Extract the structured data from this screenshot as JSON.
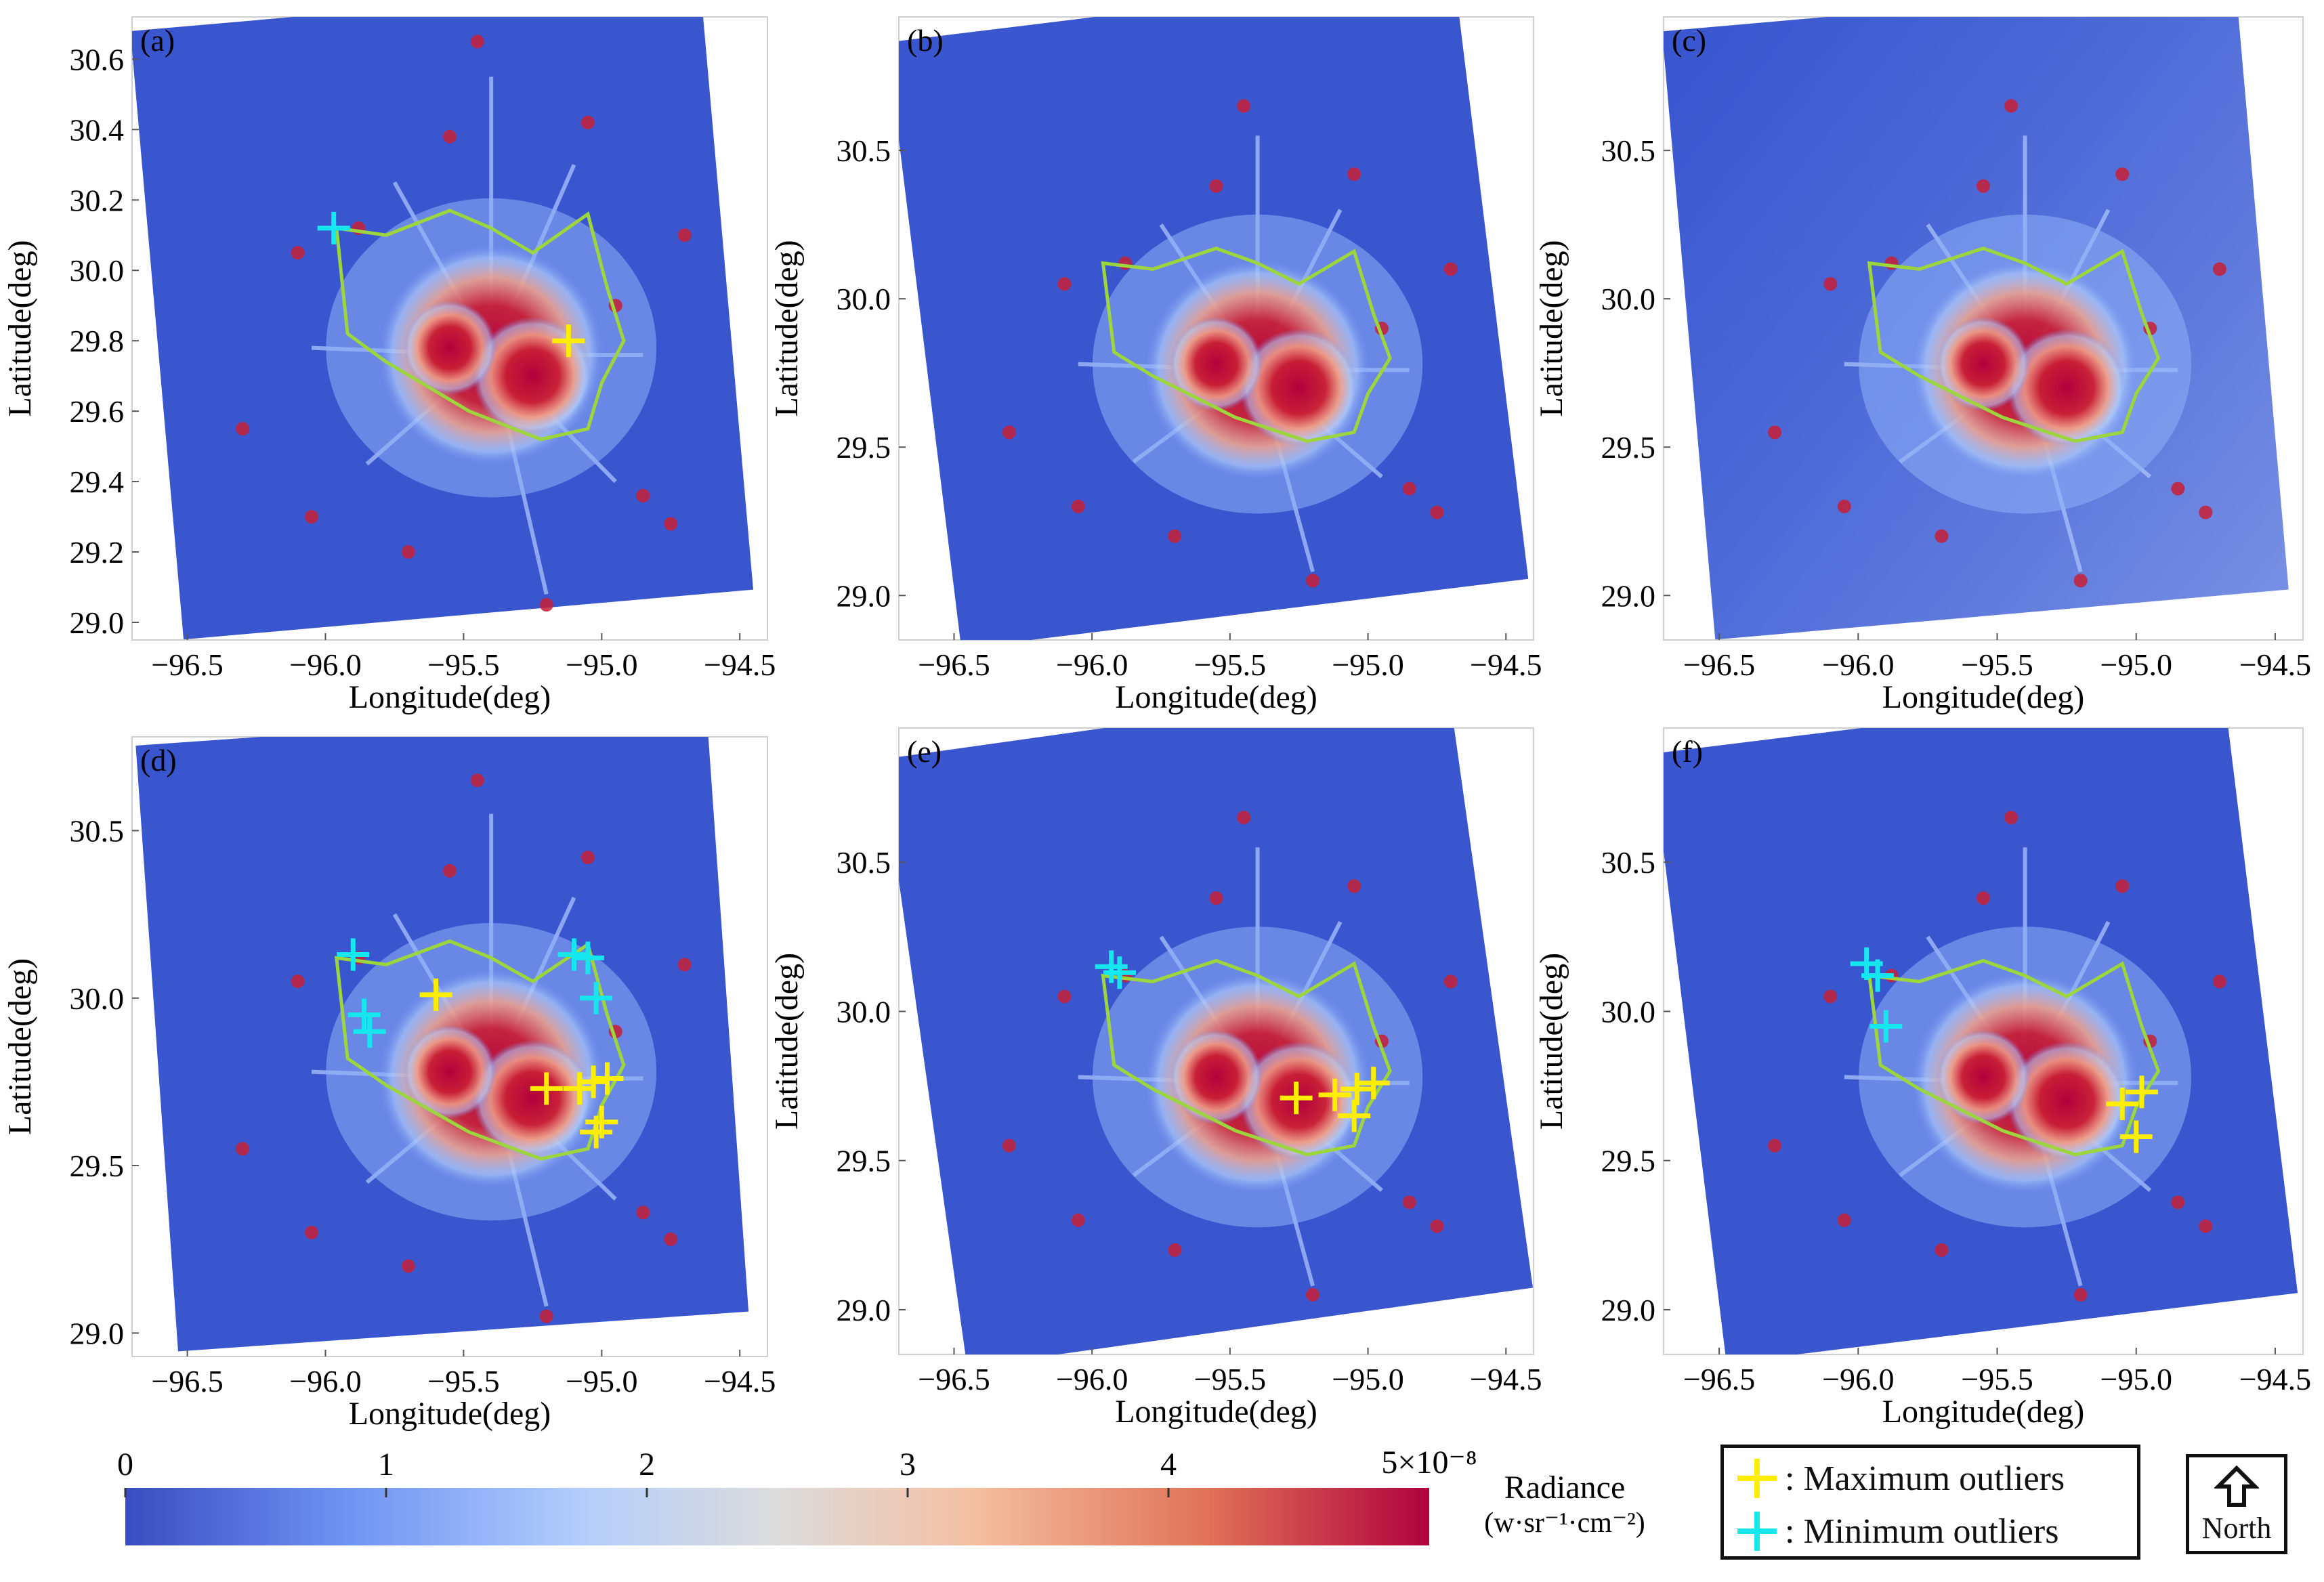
{
  "chart_data": [
    {
      "type": "heatmap",
      "panel": "(a)",
      "xlabel": "Longitude(deg)",
      "ylabel": "Latitude(deg)",
      "xticks": [
        "−96.5",
        "−96.0",
        "−95.5",
        "−95.0",
        "−94.5"
      ],
      "yticks": [
        "29.0",
        "29.2",
        "29.4",
        "29.6",
        "29.8",
        "30.0",
        "30.2",
        "30.4",
        "30.6"
      ],
      "xlim": [
        -96.7,
        -94.4
      ],
      "ylim": [
        28.95,
        30.72
      ],
      "max_outliers": [
        [
          -95.12,
          29.8
        ]
      ],
      "min_outliers": [
        [
          -95.97,
          30.12
        ]
      ]
    },
    {
      "type": "heatmap",
      "panel": "(b)",
      "xlabel": "Longitude(deg)",
      "ylabel": "Latitude(deg)",
      "xticks": [
        "−96.5",
        "−96.0",
        "−95.5",
        "−95.0",
        "−94.5"
      ],
      "yticks": [
        "29.0",
        "29.5",
        "30.0",
        "30.5"
      ],
      "xlim": [
        -96.7,
        -94.4
      ],
      "ylim": [
        28.85,
        30.95
      ],
      "max_outliers": [],
      "min_outliers": []
    },
    {
      "type": "heatmap",
      "panel": "(c)",
      "xlabel": "Longitude(deg)",
      "ylabel": "Latitude(deg)",
      "xticks": [
        "−96.5",
        "−96.0",
        "−95.5",
        "−95.0",
        "−94.5"
      ],
      "yticks": [
        "29.0",
        "29.5",
        "30.0",
        "30.5"
      ],
      "xlim": [
        -96.7,
        -94.4
      ],
      "ylim": [
        28.85,
        30.95
      ],
      "max_outliers": [],
      "min_outliers": []
    },
    {
      "type": "heatmap",
      "panel": "(d)",
      "xlabel": "Longitude(deg)",
      "ylabel": "Latitude(deg)",
      "xticks": [
        "−96.5",
        "−96.0",
        "−95.5",
        "−95.0",
        "−94.5"
      ],
      "yticks": [
        "29.0",
        "29.5",
        "30.0",
        "30.5"
      ],
      "xlim": [
        -96.7,
        -94.4
      ],
      "ylim": [
        28.93,
        30.78
      ],
      "max_outliers": [
        [
          -95.6,
          30.01
        ],
        [
          -95.2,
          29.73
        ],
        [
          -95.08,
          29.73
        ],
        [
          -95.03,
          29.75
        ],
        [
          -94.98,
          29.76
        ],
        [
          -95.0,
          29.63
        ],
        [
          -95.02,
          29.6
        ]
      ],
      "min_outliers": [
        [
          -95.9,
          30.13
        ],
        [
          -95.86,
          29.95
        ],
        [
          -95.84,
          29.9
        ],
        [
          -95.1,
          30.13
        ],
        [
          -95.05,
          30.12
        ],
        [
          -95.02,
          30.0
        ]
      ]
    },
    {
      "type": "heatmap",
      "panel": "(e)",
      "xlabel": "Longitude(deg)",
      "ylabel": "Latitude(deg)",
      "xticks": [
        "−96.5",
        "−96.0",
        "−95.5",
        "−95.0",
        "−94.5"
      ],
      "yticks": [
        "29.0",
        "29.5",
        "30.0",
        "30.5"
      ],
      "xlim": [
        -96.7,
        -94.4
      ],
      "ylim": [
        28.85,
        30.95
      ],
      "max_outliers": [
        [
          -95.26,
          29.71
        ],
        [
          -95.12,
          29.72
        ],
        [
          -95.04,
          29.74
        ],
        [
          -94.98,
          29.76
        ],
        [
          -95.05,
          29.65
        ]
      ],
      "min_outliers": [
        [
          -95.93,
          30.15
        ],
        [
          -95.9,
          30.13
        ]
      ]
    },
    {
      "type": "heatmap",
      "panel": "(f)",
      "xlabel": "Longitude(deg)",
      "ylabel": "Latitude(deg)",
      "xticks": [
        "−96.5",
        "−96.0",
        "−95.5",
        "−95.0",
        "−94.5"
      ],
      "yticks": [
        "29.0",
        "29.5",
        "30.0",
        "30.5"
      ],
      "xlim": [
        -96.7,
        -94.4
      ],
      "ylim": [
        28.85,
        30.95
      ],
      "max_outliers": [
        [
          -95.05,
          29.69
        ],
        [
          -94.98,
          29.73
        ],
        [
          -95.0,
          29.58
        ]
      ],
      "min_outliers": [
        [
          -95.97,
          30.16
        ],
        [
          -95.93,
          30.12
        ],
        [
          -95.9,
          29.95
        ]
      ]
    }
  ],
  "colorbar": {
    "title": "Radiance",
    "units": "(w·sr⁻¹·cm⁻²)",
    "ticks": [
      "0",
      "1",
      "2",
      "3",
      "4"
    ],
    "max_label": "5×10⁻⁸",
    "range": [
      0,
      5
    ],
    "colors": [
      "#3a4cc0",
      "#6f93f3",
      "#b3cdfb",
      "#dcdcdc",
      "#f4bfa1",
      "#e07257",
      "#b0023d"
    ]
  },
  "legend": {
    "max_label": ": Maximum outliers",
    "min_label": ": Minimum outliers",
    "max_color": "#ffee00",
    "min_color": "#16e6ee"
  },
  "north": {
    "label": "North",
    "icon": "up-arrow-icon"
  },
  "boundary_color": "#9cd63c"
}
